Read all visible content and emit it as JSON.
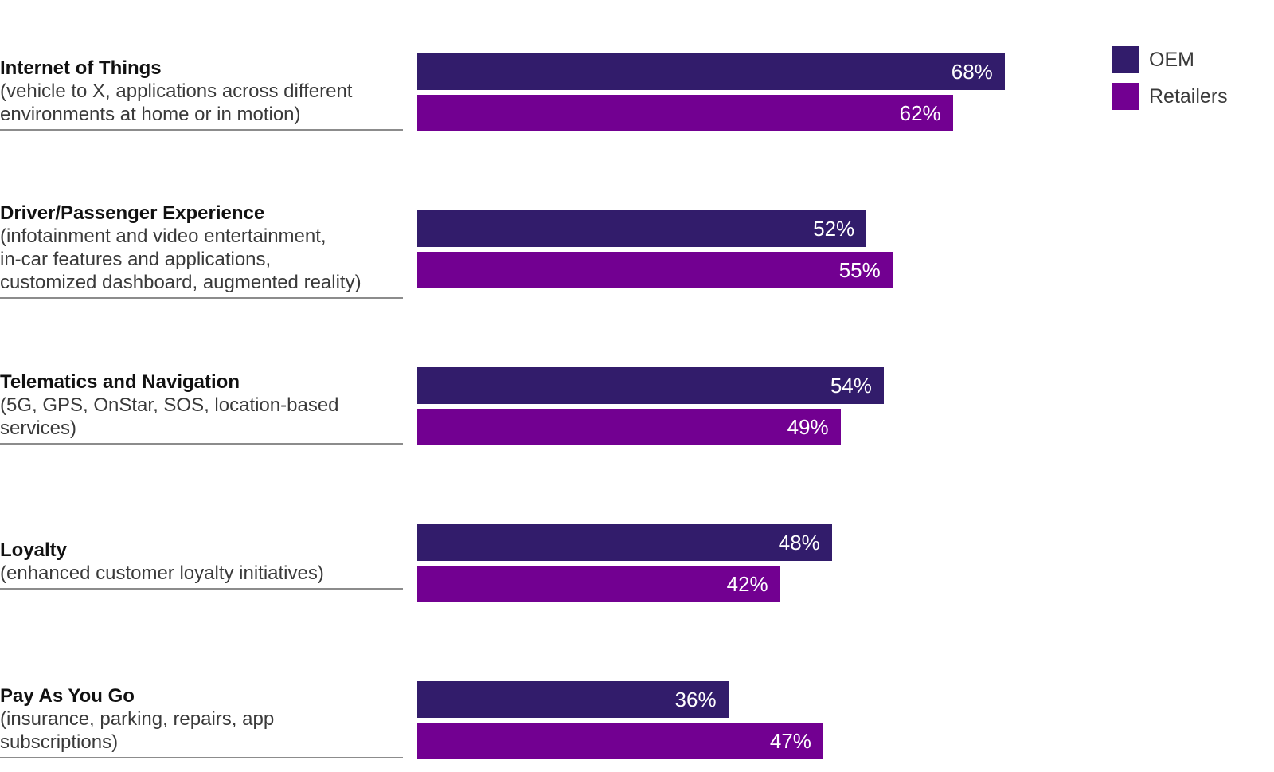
{
  "chart_data": {
    "type": "bar",
    "orientation": "horizontal",
    "title": "",
    "xlabel": "",
    "ylabel": "",
    "xlim": [
      0,
      100
    ],
    "grid": false,
    "legend_position": "top-right",
    "categories": [
      {
        "title": "Internet of Things",
        "description": "(vehicle to X, applications across different\nenvironments at home or in motion)"
      },
      {
        "title": "Driver/Passenger Experience",
        "description": "(infotainment and video entertainment,\nin-car features and applications,\ncustomized dashboard, augmented reality)"
      },
      {
        "title": "Telematics and Navigation",
        "description": "(5G, GPS, OnStar, SOS, location-based\nservices)"
      },
      {
        "title": "Loyalty",
        "description": "(enhanced customer loyalty initiatives)"
      },
      {
        "title": "Pay As You Go",
        "description": "(insurance, parking, repairs, app\nsubscriptions)"
      }
    ],
    "series": [
      {
        "name": "OEM",
        "color": "#321c6b",
        "values": [
          68,
          52,
          54,
          48,
          36
        ],
        "labels": [
          "68%",
          "52%",
          "54%",
          "48%",
          "36%"
        ]
      },
      {
        "name": "Retailers",
        "color": "#720091",
        "values": [
          62,
          55,
          49,
          42,
          47
        ],
        "labels": [
          "62%",
          "55%",
          "49%",
          "42%",
          "47%"
        ]
      }
    ]
  }
}
